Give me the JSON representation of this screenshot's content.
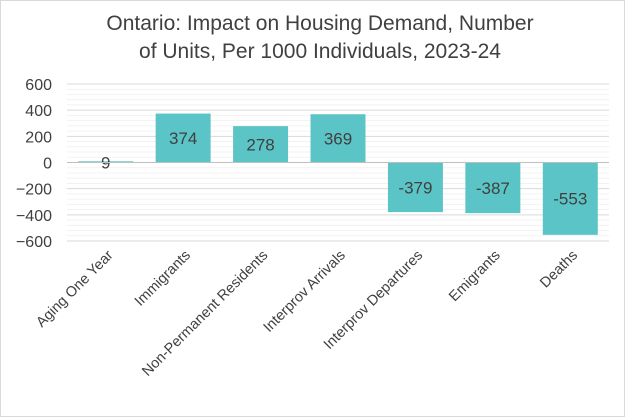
{
  "chart_data": {
    "type": "bar",
    "title": "Ontario: Impact on Housing Demand, Number of Units, Per 1000 Individuals, 2023-24",
    "title_lines": [
      "Ontario: Impact on Housing Demand, Number",
      "of Units, Per 1000 Individuals, 2023-24"
    ],
    "categories": [
      "Aging One Year",
      "Immigrants",
      "Non-Permanent Residents",
      "Interprov Arrivals",
      "Interprov Departures",
      "Emigrants",
      "Deaths"
    ],
    "values": [
      9,
      374,
      278,
      369,
      -379,
      -387,
      -553
    ],
    "data_labels": [
      "9",
      "374",
      "278",
      "369",
      "-379",
      "-387",
      "-553"
    ],
    "ylim": [
      -600,
      600
    ],
    "yticks": [
      600,
      400,
      200,
      0,
      -200,
      -400,
      -600
    ],
    "ytick_labels": [
      "600",
      "400",
      "200",
      "0",
      "−200",
      "−400",
      "−600"
    ],
    "grid": true,
    "bar_color": "#5bc4c6",
    "xlabel": "",
    "ylabel": ""
  }
}
